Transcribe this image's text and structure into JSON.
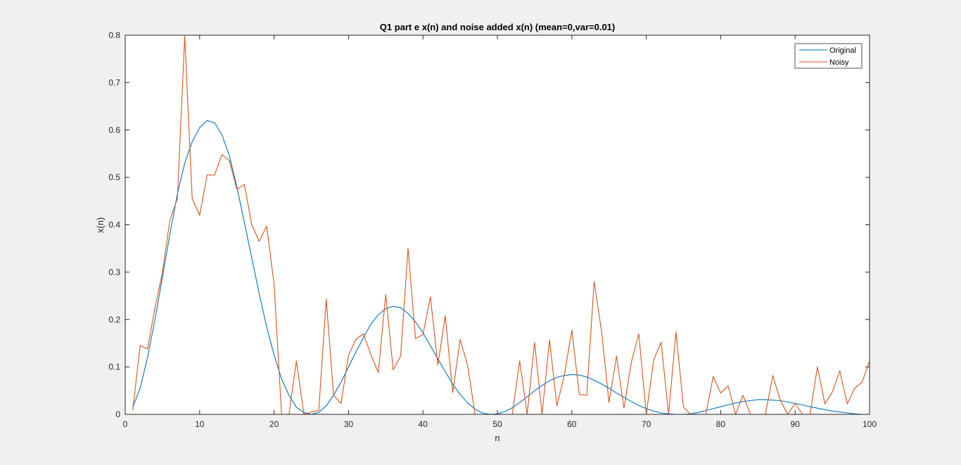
{
  "chart_data": {
    "type": "line",
    "title": "Q1 part e  x(n) and noise added x(n) (mean=0,var=0.01)",
    "xlabel": "n",
    "ylabel": "x(n)",
    "xlim": [
      0,
      100
    ],
    "ylim": [
      0,
      0.8
    ],
    "xticks": [
      0,
      10,
      20,
      30,
      40,
      50,
      60,
      70,
      80,
      90,
      100
    ],
    "yticks": [
      0,
      0.1,
      0.2,
      0.3,
      0.4,
      0.5,
      0.6,
      0.7,
      0.8
    ],
    "xtick_labels": [
      "0",
      "10",
      "20",
      "30",
      "40",
      "50",
      "60",
      "70",
      "80",
      "90",
      "100"
    ],
    "ytick_labels": [
      "0",
      "0.1",
      "0.2",
      "0.3",
      "0.4",
      "0.5",
      "0.6",
      "0.7",
      "0.8"
    ],
    "grid": false,
    "legend_position": "top-right",
    "series": [
      {
        "name": "Original",
        "color": "#0072BD",
        "x": [
          1,
          2,
          3,
          4,
          5,
          6,
          7,
          8,
          9,
          10,
          11,
          12,
          13,
          14,
          15,
          16,
          17,
          18,
          19,
          20,
          21,
          22,
          23,
          24,
          25,
          26,
          27,
          28,
          29,
          30,
          31,
          32,
          33,
          34,
          35,
          36,
          37,
          38,
          39,
          40,
          41,
          42,
          43,
          44,
          45,
          46,
          47,
          48,
          49,
          50,
          51,
          52,
          53,
          54,
          55,
          56,
          57,
          58,
          59,
          60,
          61,
          62,
          63,
          64,
          65,
          66,
          67,
          68,
          69,
          70,
          71,
          72,
          73,
          74,
          75,
          76,
          77,
          78,
          79,
          80,
          81,
          82,
          83,
          84,
          85,
          86,
          87,
          88,
          89,
          90,
          91,
          92,
          93,
          94,
          95,
          96,
          97,
          98,
          99,
          100
        ],
        "values": [
          0.015,
          0.055,
          0.12,
          0.2,
          0.29,
          0.38,
          0.465,
          0.53,
          0.575,
          0.605,
          0.62,
          0.615,
          0.59,
          0.545,
          0.48,
          0.405,
          0.33,
          0.255,
          0.185,
          0.125,
          0.075,
          0.04,
          0.015,
          0.004,
          0.0,
          0.004,
          0.018,
          0.04,
          0.068,
          0.1,
          0.132,
          0.162,
          0.19,
          0.21,
          0.223,
          0.228,
          0.225,
          0.213,
          0.195,
          0.172,
          0.145,
          0.117,
          0.09,
          0.064,
          0.042,
          0.024,
          0.011,
          0.003,
          0.0,
          0.001,
          0.006,
          0.014,
          0.025,
          0.037,
          0.05,
          0.061,
          0.071,
          0.078,
          0.082,
          0.084,
          0.083,
          0.079,
          0.072,
          0.064,
          0.055,
          0.045,
          0.036,
          0.027,
          0.019,
          0.012,
          0.007,
          0.003,
          0.001,
          0.0,
          0.0,
          0.001,
          0.004,
          0.008,
          0.012,
          0.016,
          0.02,
          0.024,
          0.027,
          0.029,
          0.031,
          0.031,
          0.03,
          0.029,
          0.026,
          0.023,
          0.02,
          0.016,
          0.013,
          0.01,
          0.007,
          0.005,
          0.003,
          0.001,
          0.0,
          0.0
        ]
      },
      {
        "name": "Noisy",
        "color": "#D95319",
        "x": [
          1,
          2,
          3,
          4,
          5,
          6,
          7,
          8,
          9,
          10,
          11,
          12,
          13,
          14,
          15,
          16,
          17,
          18,
          19,
          20,
          21,
          22,
          23,
          24,
          25,
          26,
          27,
          28,
          29,
          30,
          31,
          32,
          33,
          34,
          35,
          36,
          37,
          38,
          39,
          40,
          41,
          42,
          43,
          44,
          45,
          46,
          47,
          48,
          49,
          50,
          51,
          52,
          53,
          54,
          55,
          56,
          57,
          58,
          59,
          60,
          61,
          62,
          63,
          64,
          65,
          66,
          67,
          68,
          69,
          70,
          71,
          72,
          73,
          74,
          75,
          76,
          77,
          78,
          79,
          80,
          81,
          82,
          83,
          84,
          85,
          86,
          87,
          88,
          89,
          90,
          91,
          92,
          93,
          94,
          95,
          96,
          97,
          98,
          99,
          100
        ],
        "values": [
          0.008,
          0.145,
          0.138,
          0.225,
          0.3,
          0.41,
          0.455,
          0.798,
          0.455,
          0.42,
          0.505,
          0.505,
          0.548,
          0.535,
          0.475,
          0.485,
          0.4,
          0.365,
          0.397,
          0.275,
          0.0,
          0.0,
          0.113,
          0.0,
          0.005,
          0.008,
          0.243,
          0.04,
          0.023,
          0.125,
          0.158,
          0.17,
          0.126,
          0.088,
          0.253,
          0.094,
          0.123,
          0.35,
          0.16,
          0.168,
          0.248,
          0.104,
          0.208,
          0.046,
          0.158,
          0.103,
          0.0,
          0.0,
          0.0,
          0.0,
          0.0,
          0.0,
          0.113,
          0.0,
          0.152,
          0.0,
          0.157,
          0.018,
          0.083,
          0.178,
          0.042,
          0.04,
          0.28,
          0.175,
          0.025,
          0.123,
          0.013,
          0.11,
          0.17,
          0.0,
          0.115,
          0.152,
          0.0,
          0.174,
          0.015,
          0.0,
          0.0,
          0.0,
          0.08,
          0.045,
          0.06,
          0.0,
          0.04,
          0.0,
          0.0,
          0.0,
          0.082,
          0.03,
          0.0,
          0.023,
          0.0,
          0.0,
          0.1,
          0.022,
          0.047,
          0.092,
          0.022,
          0.055,
          0.068,
          0.113
        ]
      }
    ]
  }
}
